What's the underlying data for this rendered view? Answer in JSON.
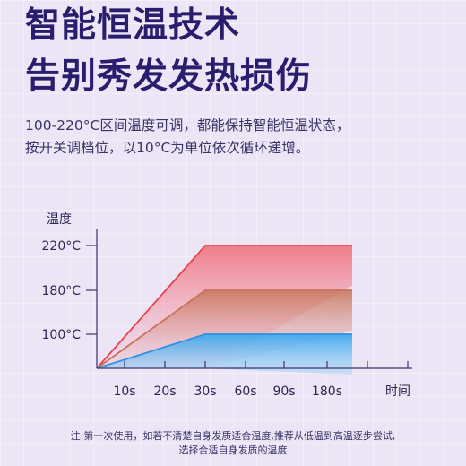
{
  "headline": {
    "line1": "智能恒温技术",
    "line2": "告别秀发发热损伤"
  },
  "description": {
    "line1": "100-220°C区间温度可调，都能保持智能恒温状态，",
    "line2": "按开关调档位，以10°C为单位依次循环递增。"
  },
  "chart_data": {
    "type": "area",
    "title": "",
    "ylabel": "温度",
    "xlabel": "时间",
    "categories": [
      "",
      "10s",
      "20s",
      "30s",
      "60s",
      "90s",
      "180s",
      ""
    ],
    "y_ticks": [
      "100°C",
      "180°C",
      "220°C"
    ],
    "series": [
      {
        "values": [
          0,
          null,
          null,
          220,
          220,
          220,
          220,
          220
        ],
        "color": "#e6424c"
      },
      {
        "values": [
          0,
          null,
          null,
          180,
          180,
          180,
          180,
          180
        ],
        "color": "#c9715a"
      },
      {
        "values": [
          0,
          null,
          null,
          100,
          100,
          100,
          100,
          100
        ],
        "color": "#2e90e0"
      }
    ],
    "grid": false,
    "legend": "none"
  },
  "footnote": {
    "line1": "注:第一次使用，如若不清楚自身发质适合温度,推荐从低温到高温逐步尝试,",
    "line2": "选择合适自身发质的温度"
  }
}
